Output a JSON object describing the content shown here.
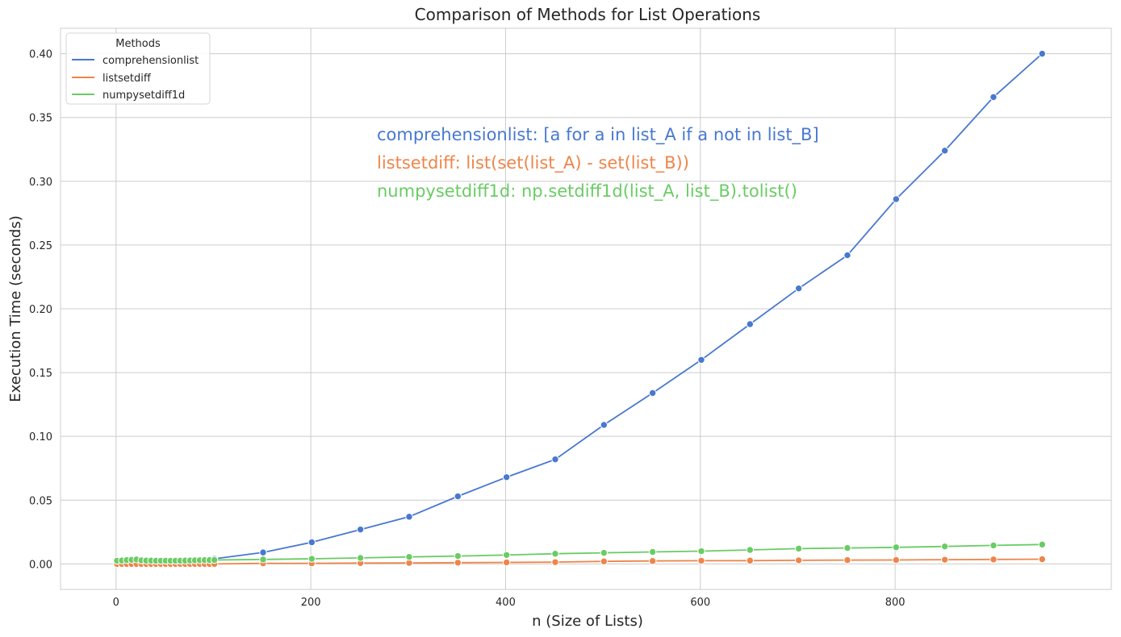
{
  "chart_data": {
    "type": "line",
    "title": "Comparison of Methods for List Operations",
    "xlabel": "n (Size of Lists)",
    "ylabel": "Execution Time (seconds)",
    "xlim": [
      -57,
      1022
    ],
    "ylim": [
      -0.02,
      0.42
    ],
    "xticks": [
      0,
      200,
      400,
      600,
      800
    ],
    "yticks": [
      0.0,
      0.05,
      0.1,
      0.15,
      0.2,
      0.25,
      0.3,
      0.35,
      0.4
    ],
    "xtick_labels": [
      "0",
      "200",
      "400",
      "600",
      "800"
    ],
    "ytick_labels": [
      "0.00",
      "0.05",
      "0.10",
      "0.15",
      "0.20",
      "0.25",
      "0.30",
      "0.35",
      "0.40"
    ],
    "grid": true,
    "legend": {
      "title": "Methods",
      "placement": "upper-left"
    },
    "annotations": [
      {
        "text": "comprehensionlist: [a for a in list_A if a not in list_B]",
        "color": "#4878d0"
      },
      {
        "text": "listsetdiff: list(set(list_A) - set(list_B))",
        "color": "#ee854a"
      },
      {
        "text": "numpysetdiff1d: np.setdiff1d(list_A, list_B).tolist()",
        "color": "#6acc64"
      }
    ],
    "x": [
      1,
      6,
      11,
      16,
      21,
      26,
      31,
      36,
      41,
      46,
      51,
      56,
      61,
      66,
      71,
      76,
      81,
      86,
      91,
      96,
      101,
      151,
      201,
      251,
      301,
      351,
      401,
      451,
      501,
      551,
      601,
      651,
      701,
      751,
      801,
      851,
      901,
      951
    ],
    "series": [
      {
        "name": "comprehensionlist",
        "color": "#4878d0",
        "values": [
          0.0,
          0.0,
          0.0,
          0.0,
          0.0,
          0.0,
          0.0,
          0.0,
          0.0,
          0.0,
          0.001,
          0.001,
          0.001,
          0.001,
          0.002,
          0.002,
          0.002,
          0.003,
          0.003,
          0.003,
          0.004,
          0.009,
          0.017,
          0.027,
          0.037,
          0.053,
          0.068,
          0.082,
          0.109,
          0.134,
          0.16,
          0.188,
          0.216,
          0.242,
          0.286,
          0.324,
          0.366,
          0.4
        ]
      },
      {
        "name": "listsetdiff",
        "color": "#ee854a",
        "values": [
          0.0,
          0.0,
          0.0,
          0.0,
          0.0,
          0.0,
          0.0,
          0.0,
          0.0,
          0.0,
          0.0,
          0.0,
          0.0,
          0.0,
          0.0,
          0.0,
          0.0,
          0.0,
          0.0,
          0.0,
          0.0,
          0.0005,
          0.0005,
          0.0007,
          0.0008,
          0.001,
          0.0012,
          0.0014,
          0.002,
          0.0023,
          0.0025,
          0.0026,
          0.0028,
          0.003,
          0.0031,
          0.0033,
          0.0035,
          0.0037
        ]
      },
      {
        "name": "numpysetdiff1d",
        "color": "#6acc64",
        "values": [
          0.0025,
          0.0027,
          0.003,
          0.0032,
          0.0035,
          0.0028,
          0.0026,
          0.0026,
          0.0025,
          0.0025,
          0.0025,
          0.0025,
          0.0025,
          0.0025,
          0.0026,
          0.0027,
          0.0028,
          0.0029,
          0.003,
          0.003,
          0.0031,
          0.0035,
          0.004,
          0.0047,
          0.0055,
          0.0062,
          0.007,
          0.008,
          0.0087,
          0.0094,
          0.01,
          0.011,
          0.012,
          0.0125,
          0.013,
          0.0137,
          0.0145,
          0.0152
        ]
      }
    ]
  }
}
